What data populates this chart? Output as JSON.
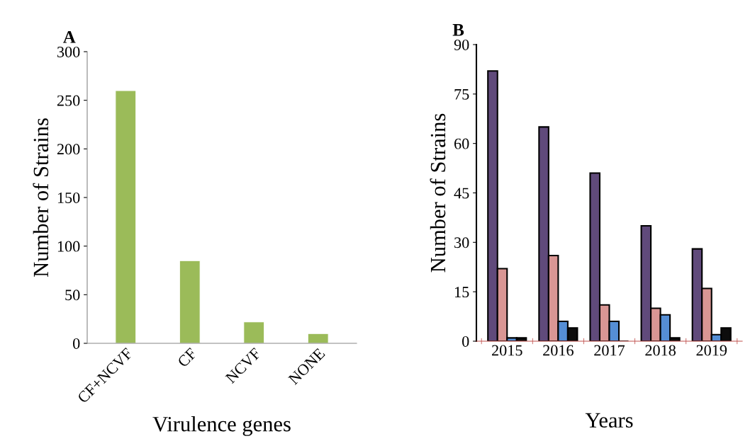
{
  "chart_data": [
    {
      "type": "bar",
      "title": "A",
      "xlabel": "Virulence genes",
      "ylabel": "Number of Strains",
      "categories": [
        "CF+NCVF",
        "CF",
        "NCVF",
        "NONE"
      ],
      "values": [
        260,
        85,
        22,
        10
      ],
      "color": "#9bbb59",
      "ylim": [
        0,
        300
      ],
      "yticks": [
        0,
        50,
        100,
        150,
        200,
        250,
        300
      ],
      "grid": false,
      "legend": false
    },
    {
      "type": "bar",
      "title": "B",
      "xlabel": "Years",
      "ylabel": "Number of Strains",
      "categories": [
        "2015",
        "2016",
        "2017",
        "2018",
        "2019"
      ],
      "series": [
        {
          "color": "#604a7b",
          "values": [
            82,
            65,
            51,
            35,
            28
          ]
        },
        {
          "color": "#d99694",
          "values": [
            22,
            26,
            11,
            10,
            16
          ]
        },
        {
          "color": "#558ed5",
          "values": [
            1,
            6,
            6,
            8,
            2
          ]
        },
        {
          "color": "#0d0d0d",
          "values": [
            1,
            4,
            0,
            1,
            4
          ]
        }
      ],
      "ylim": [
        0,
        90
      ],
      "yticks": [
        0,
        15,
        30,
        45,
        60,
        75,
        90
      ],
      "grid": false,
      "legend": false
    }
  ]
}
